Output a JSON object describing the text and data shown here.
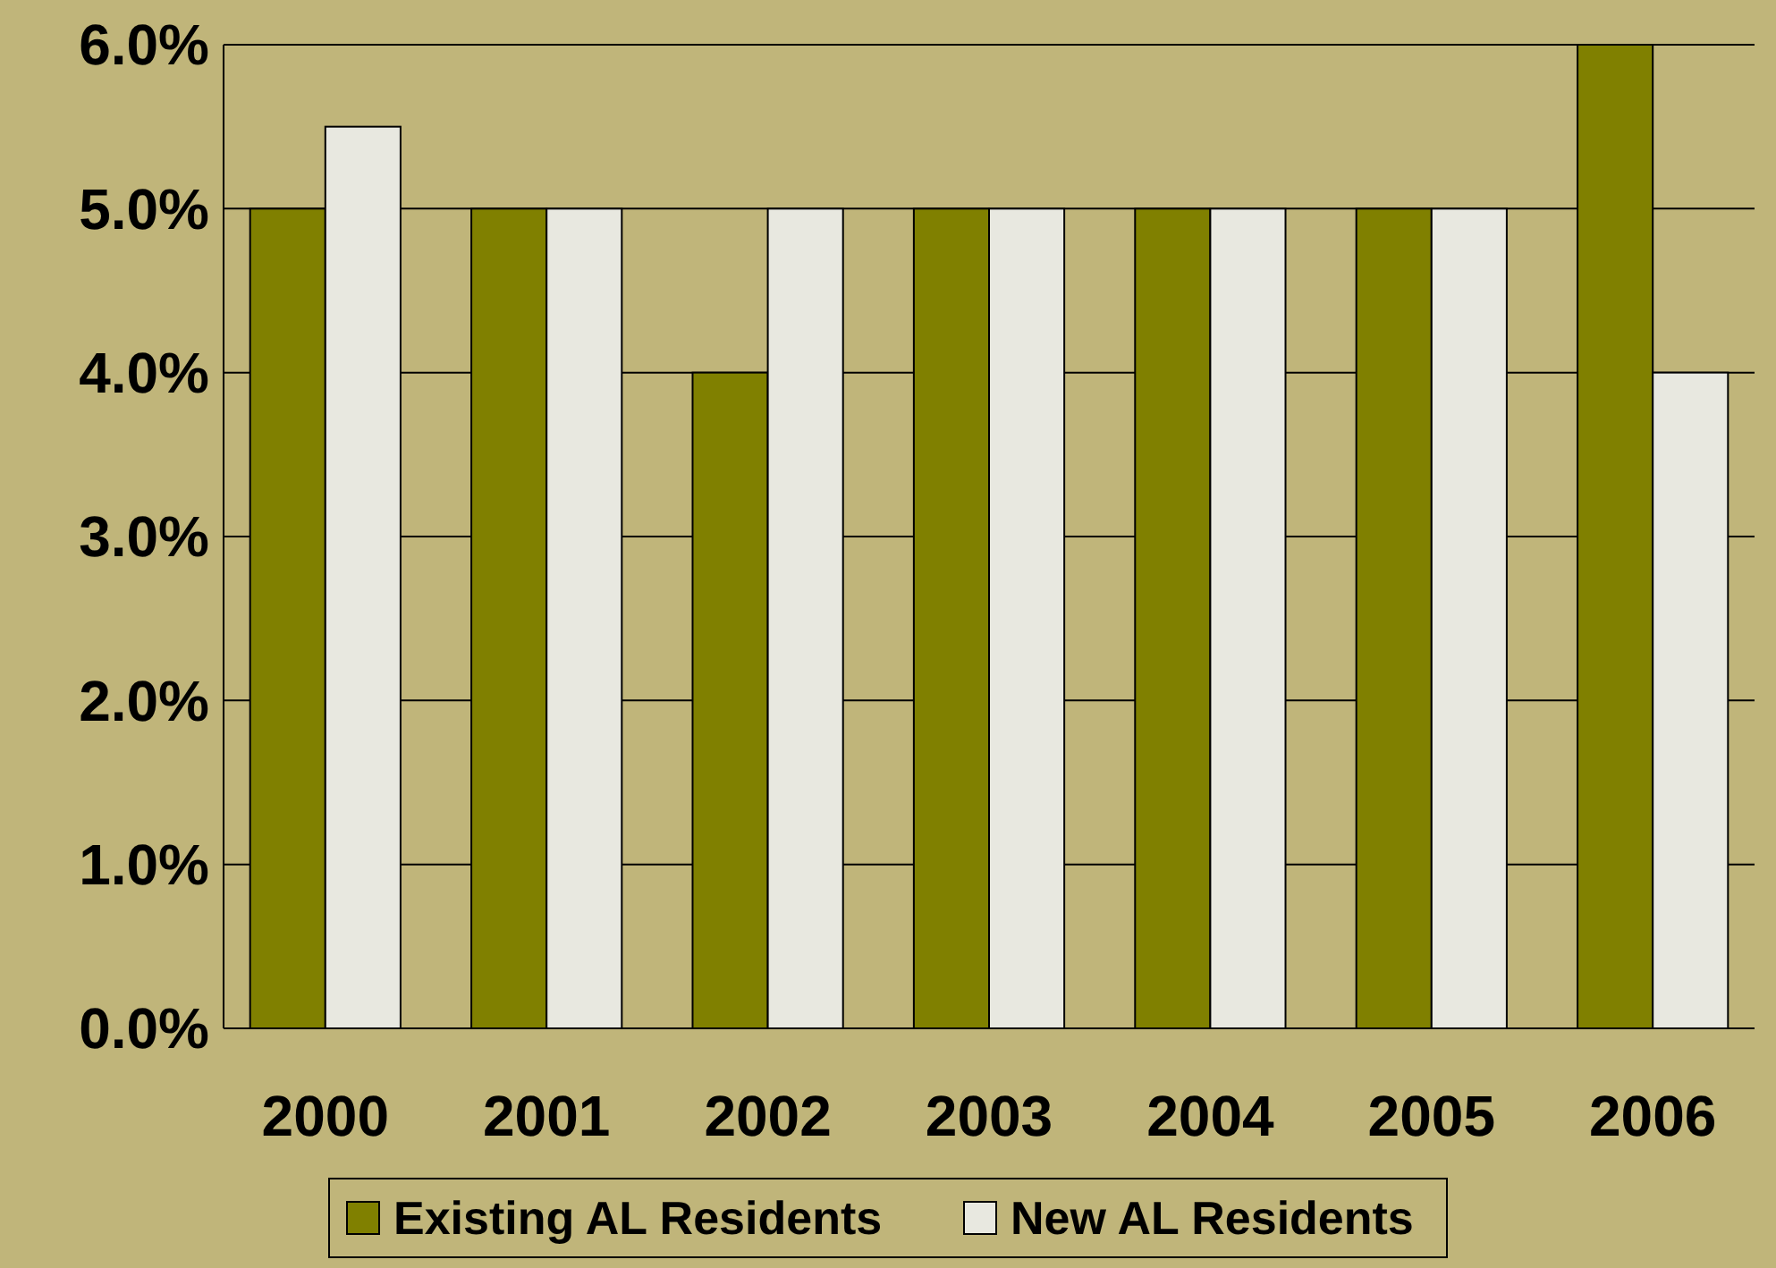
{
  "chart_data": {
    "type": "bar",
    "categories": [
      "2000",
      "2001",
      "2002",
      "2003",
      "2004",
      "2005",
      "2006"
    ],
    "series": [
      {
        "name": "Existing AL Residents",
        "color": "#808000",
        "values": [
          5,
          5,
          4,
          5,
          5,
          5,
          6
        ]
      },
      {
        "name": "New AL Residents",
        "color": "#e8e8e0",
        "values": [
          5.5,
          5,
          5,
          5,
          5,
          5,
          4
        ]
      }
    ],
    "ylim": [
      0,
      6
    ],
    "yticks": [
      {
        "value": 0,
        "label": "0.0%"
      },
      {
        "value": 1,
        "label": "1.0%"
      },
      {
        "value": 2,
        "label": "2.0%"
      },
      {
        "value": 3,
        "label": "3.0%"
      },
      {
        "value": 4,
        "label": "4.0%"
      },
      {
        "value": 5,
        "label": "5.0%"
      },
      {
        "value": 6,
        "label": "6.0%"
      }
    ],
    "grid": "y",
    "legend": "bottom"
  }
}
